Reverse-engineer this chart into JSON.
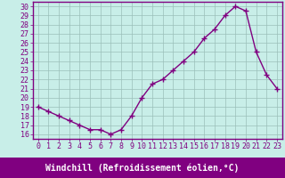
{
  "x": [
    0,
    1,
    2,
    3,
    4,
    5,
    6,
    7,
    8,
    9,
    10,
    11,
    12,
    13,
    14,
    15,
    16,
    17,
    18,
    19,
    20,
    21,
    22,
    23
  ],
  "y": [
    19,
    18.5,
    18,
    17.5,
    17,
    16.5,
    16.5,
    16,
    16.5,
    18,
    20,
    21.5,
    22,
    23,
    24,
    25,
    26.5,
    27.5,
    29,
    30,
    29.5,
    25,
    22.5,
    21
  ],
  "line_color": "#800080",
  "marker": "+",
  "marker_size": 4,
  "line_width": 1.0,
  "bg_color": "#c8eee8",
  "grid_color": "#9bbfba",
  "xlabel": "Windchill (Refroidissement éolien,°C)",
  "xlabel_bg": "#800080",
  "xlabel_color": "#ffffff",
  "xlim": [
    -0.5,
    23.5
  ],
  "ylim": [
    15.5,
    30.5
  ],
  "yticks": [
    16,
    17,
    18,
    19,
    20,
    21,
    22,
    23,
    24,
    25,
    26,
    27,
    28,
    29,
    30
  ],
  "xticks": [
    0,
    1,
    2,
    3,
    4,
    5,
    6,
    7,
    8,
    9,
    10,
    11,
    12,
    13,
    14,
    15,
    16,
    17,
    18,
    19,
    20,
    21,
    22,
    23
  ],
  "tick_label_fontsize": 6,
  "xlabel_fontsize": 7,
  "spine_color": "#800080"
}
